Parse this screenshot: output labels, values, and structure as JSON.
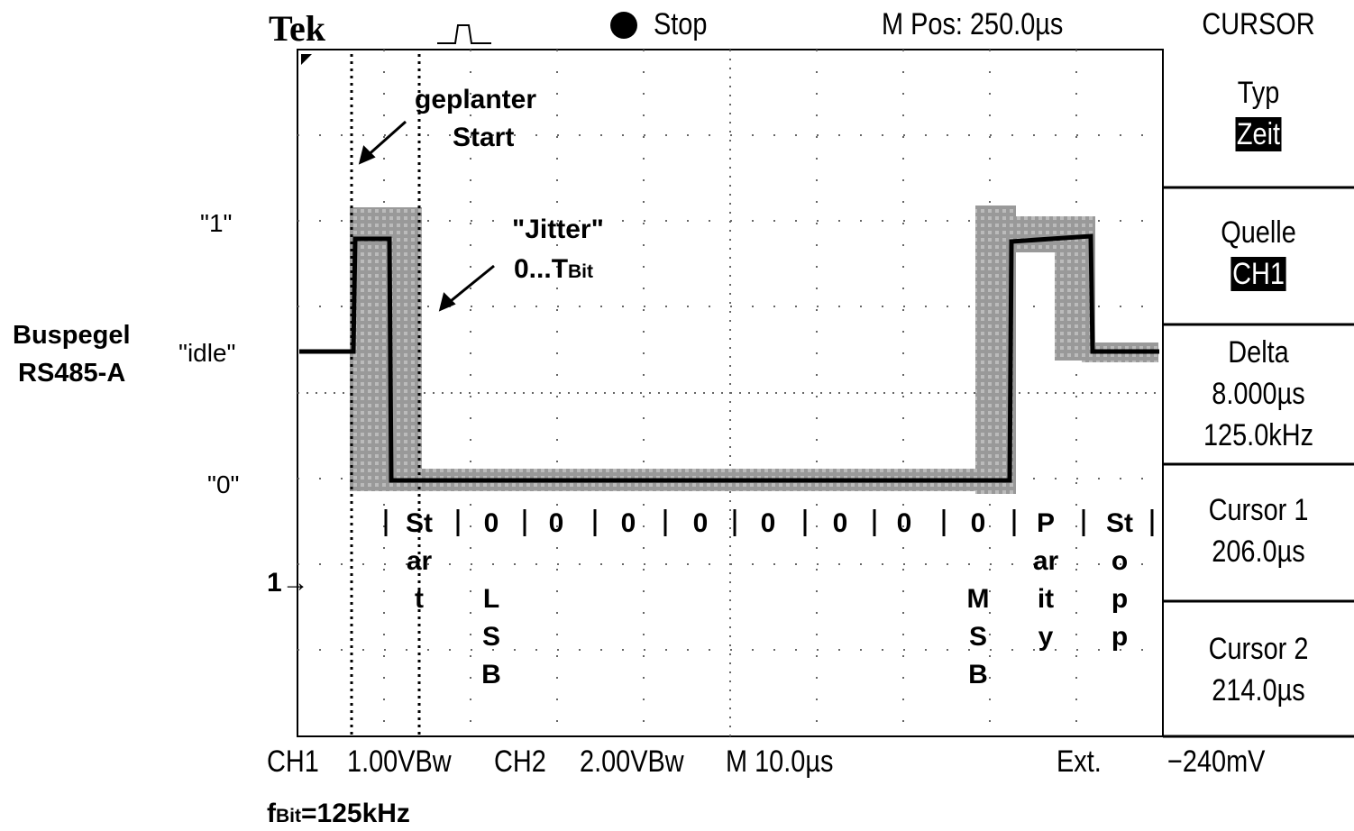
{
  "header": {
    "brand": "Tek",
    "status": "Stop",
    "position": "M Pos: 250.0µs",
    "menu_title": "CURSOR"
  },
  "menu": [
    {
      "label": "Typ",
      "values": [
        "Zeit"
      ],
      "highlight": true
    },
    {
      "label": "Quelle",
      "values": [
        "CH1"
      ],
      "highlight": true
    },
    {
      "label": "Delta",
      "values": [
        "8.000µs",
        "125.0kHz"
      ],
      "highlight": false
    },
    {
      "label": "Cursor 1",
      "values": [
        "206.0µs"
      ],
      "highlight": false
    },
    {
      "label": "Cursor 2",
      "values": [
        "214.0µs"
      ],
      "highlight": false
    }
  ],
  "footer": {
    "ch1": "CH1",
    "ch1_scale": "1.00VBw",
    "ch2": "CH2",
    "ch2_scale": "2.00VBw",
    "timebase": "M 10.0µs",
    "trigger": "Ext.",
    "trigger_level": "−240mV"
  },
  "annotations": {
    "planned_start": [
      "geplanter",
      "Start"
    ],
    "jitter": "\"Jitter\"",
    "jitter_range": {
      "text": "0...T",
      "subscript": "Bit"
    },
    "bus_level": [
      "Buspegel",
      "RS485-A"
    ],
    "levels": [
      "\"1\"",
      "\"idle\"",
      "\"0\""
    ],
    "ground_marker": "1",
    "bit_rate": {
      "symbol": "f",
      "subscript": "Bit",
      "text": "=125kHz"
    }
  },
  "bits": [
    {
      "label": "Start"
    },
    {
      "label": "0",
      "note": "LSB"
    },
    {
      "label": "0"
    },
    {
      "label": "0"
    },
    {
      "label": "0"
    },
    {
      "label": "0"
    },
    {
      "label": "0"
    },
    {
      "label": "0"
    },
    {
      "label": "0",
      "note": "MSB"
    },
    {
      "label": "Parity"
    },
    {
      "label": "Stopp"
    }
  ]
}
